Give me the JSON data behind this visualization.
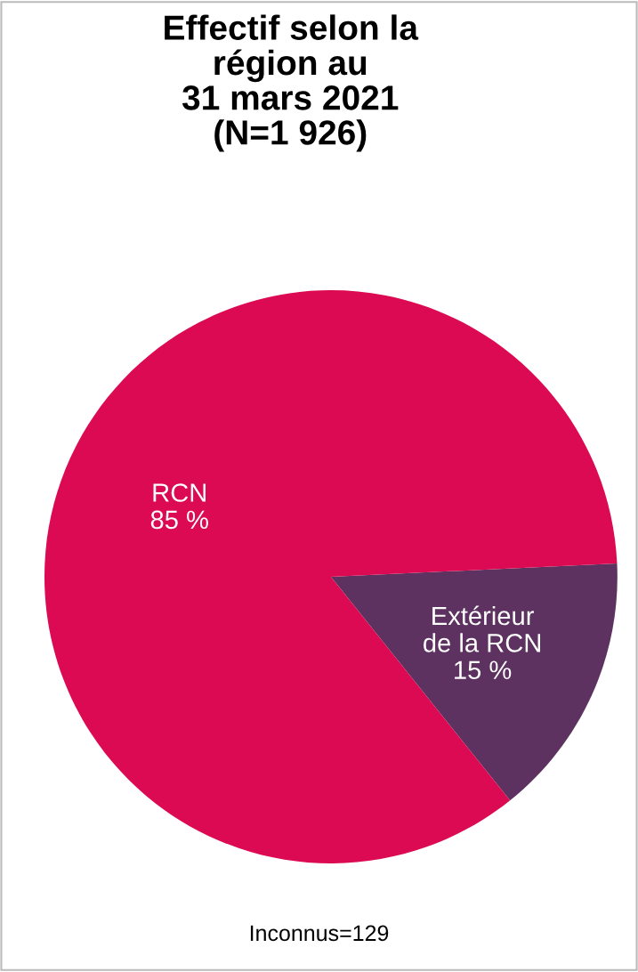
{
  "chart_data": {
    "type": "pie",
    "title": "Effectif selon la\nrégion au\n31 mars 2021\n(N=1 926)",
    "categories": [
      "Extérieur de la RCN",
      "RCN"
    ],
    "values": [
      15,
      85
    ],
    "colors": [
      "#5e3260",
      "#dc0a52"
    ],
    "value_labels": [
      "15 %",
      "85 %"
    ],
    "legend": false,
    "annotations": [
      "Inconnus=129"
    ]
  }
}
